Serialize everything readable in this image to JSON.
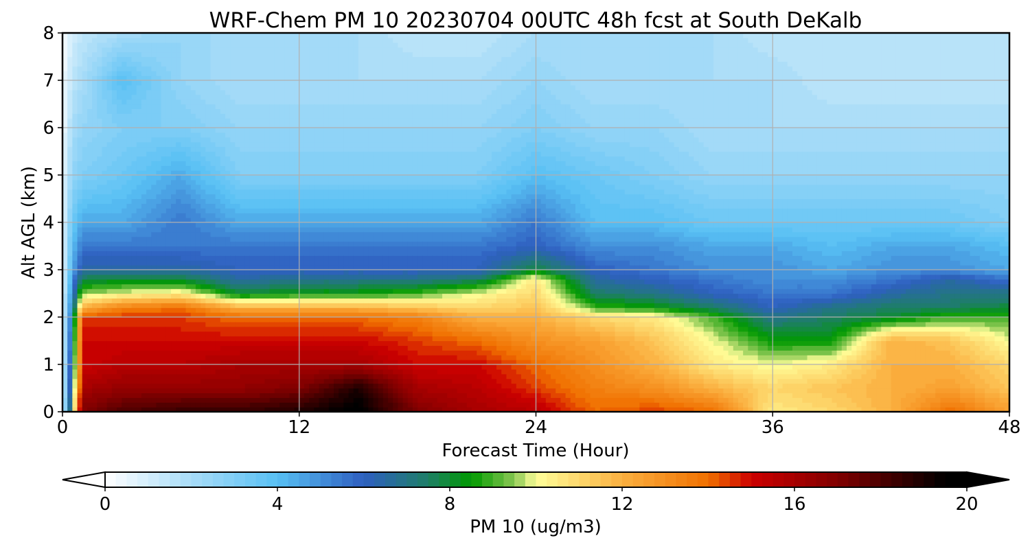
{
  "chart_data": {
    "type": "heatmap",
    "subtype": "filled-contour time-height cross-section",
    "title": "WRF-Chem PM 10  20230704 00UTC 48h fcst at South DeKalb",
    "xlabel": "Forecast Time (Hour)",
    "ylabel": "Alt AGL (km)",
    "xlim": [
      0,
      48
    ],
    "ylim": [
      0,
      8
    ],
    "xticks": [
      "0",
      "12",
      "24",
      "36",
      "48"
    ],
    "yticks": [
      "0",
      "1",
      "2",
      "3",
      "4",
      "5",
      "6",
      "7",
      "8"
    ],
    "grid": true,
    "colorbar": {
      "label": "PM 10  (ug/m3)",
      "orientation": "horizontal",
      "placement": "bottom",
      "range": [
        0,
        20
      ],
      "ticks": [
        "0",
        "4",
        "8",
        "12",
        "16",
        "20"
      ],
      "extend": "both",
      "colors": {
        "stops": [
          0,
          2,
          4,
          6,
          7.5,
          8.5,
          9.5,
          10,
          12,
          14,
          15,
          17,
          19.5
        ],
        "hex": [
          "#ffffff",
          "#a8dcf8",
          "#58c0f4",
          "#2e5fc0",
          "#1e7f66",
          "#009900",
          "#8ac853",
          "#ffff9a",
          "#fbb040",
          "#f07000",
          "#cc0000",
          "#800000",
          "#000000"
        ]
      }
    },
    "profiles": {
      "x_hours": [
        0,
        0.5,
        1,
        3,
        6,
        9,
        12,
        15,
        18,
        21,
        24,
        27,
        30,
        33,
        36,
        39,
        42,
        45,
        48
      ],
      "z_km": [
        0,
        0.5,
        1,
        1.5,
        2,
        2.2,
        2.5,
        2.8,
        3,
        3.5,
        4,
        5,
        6,
        7,
        8
      ],
      "values": [
        [
          0.5,
          0.5,
          0.5,
          0.5,
          0.5,
          0.5,
          0.5,
          0.5,
          0.5,
          0.5,
          0.5,
          0.5,
          0.3,
          0.2,
          0.2
        ],
        [
          9.0,
          8.0,
          7.5,
          7.0,
          6.5,
          6.0,
          5.5,
          5.0,
          4.5,
          4.0,
          3.5,
          2.5,
          2.0,
          1.5,
          1.0
        ],
        [
          17.0,
          16.0,
          15.0,
          15.0,
          14.5,
          12.0,
          9.5,
          7.8,
          6.5,
          5.5,
          4.5,
          3.0,
          2.5,
          2.0,
          1.5
        ],
        [
          18.0,
          16.5,
          15.5,
          15.0,
          14.5,
          13.5,
          10.0,
          8.0,
          6.5,
          5.5,
          4.5,
          3.5,
          3.0,
          4.0,
          2.0
        ],
        [
          18.5,
          16.5,
          15.5,
          15.0,
          14.5,
          14.0,
          10.5,
          8.0,
          6.5,
          5.5,
          5.5,
          4.5,
          3.0,
          2.5,
          2.5
        ],
        [
          18.5,
          16.5,
          16.0,
          15.0,
          14.0,
          12.0,
          8.0,
          6.5,
          6.0,
          5.5,
          4.5,
          3.0,
          2.5,
          2.0,
          2.0
        ],
        [
          19.0,
          17.0,
          16.0,
          15.0,
          14.0,
          12.0,
          8.5,
          7.0,
          6.0,
          5.5,
          4.5,
          3.0,
          2.5,
          2.0,
          2.0
        ],
        [
          19.8,
          19.0,
          16.0,
          15.0,
          14.0,
          12.0,
          8.5,
          7.0,
          6.0,
          5.5,
          4.5,
          3.0,
          2.5,
          2.0,
          2.0
        ],
        [
          17.0,
          16.0,
          15.0,
          14.5,
          13.5,
          11.5,
          9.0,
          7.0,
          6.0,
          5.5,
          4.5,
          3.0,
          2.5,
          2.0,
          1.5
        ],
        [
          16.0,
          15.5,
          15.0,
          14.0,
          12.0,
          11.0,
          10.0,
          7.5,
          6.0,
          5.5,
          4.5,
          3.0,
          2.5,
          2.0,
          1.5
        ],
        [
          15.5,
          14.5,
          14.0,
          13.0,
          12.0,
          11.5,
          11.0,
          10.5,
          8.0,
          6.0,
          5.5,
          4.0,
          3.0,
          2.5,
          2.0
        ],
        [
          14.0,
          13.5,
          13.0,
          12.5,
          11.0,
          9.0,
          7.5,
          6.5,
          6.0,
          5.0,
          4.0,
          3.5,
          2.5,
          2.0,
          2.0
        ],
        [
          14.5,
          13.0,
          12.0,
          11.5,
          10.5,
          8.5,
          7.0,
          6.0,
          5.5,
          5.0,
          4.0,
          3.0,
          2.5,
          2.0,
          2.0
        ],
        [
          14.0,
          12.0,
          10.5,
          10.0,
          9.0,
          7.5,
          6.0,
          5.5,
          5.0,
          4.5,
          3.5,
          2.5,
          2.0,
          2.0,
          2.0
        ],
        [
          10.5,
          11.0,
          10.0,
          8.5,
          7.0,
          6.0,
          5.5,
          5.0,
          5.0,
          4.5,
          3.5,
          2.5,
          2.0,
          2.0,
          1.5
        ],
        [
          11.0,
          11.5,
          10.5,
          8.5,
          7.5,
          7.0,
          5.5,
          5.0,
          4.5,
          4.0,
          3.5,
          2.5,
          2.0,
          1.5,
          1.5
        ],
        [
          12.0,
          12.0,
          12.0,
          12.0,
          8.0,
          7.5,
          6.5,
          5.5,
          5.0,
          4.5,
          3.5,
          2.5,
          2.0,
          1.5,
          1.5
        ],
        [
          14.0,
          12.5,
          12.0,
          11.5,
          9.0,
          7.5,
          7.0,
          6.5,
          5.0,
          4.5,
          3.5,
          2.5,
          2.0,
          1.5,
          1.5
        ],
        [
          12.5,
          11.5,
          11.0,
          10.0,
          9.0,
          8.0,
          7.0,
          5.5,
          4.5,
          4.0,
          3.0,
          2.5,
          2.0,
          1.5,
          1.5
        ]
      ]
    }
  }
}
